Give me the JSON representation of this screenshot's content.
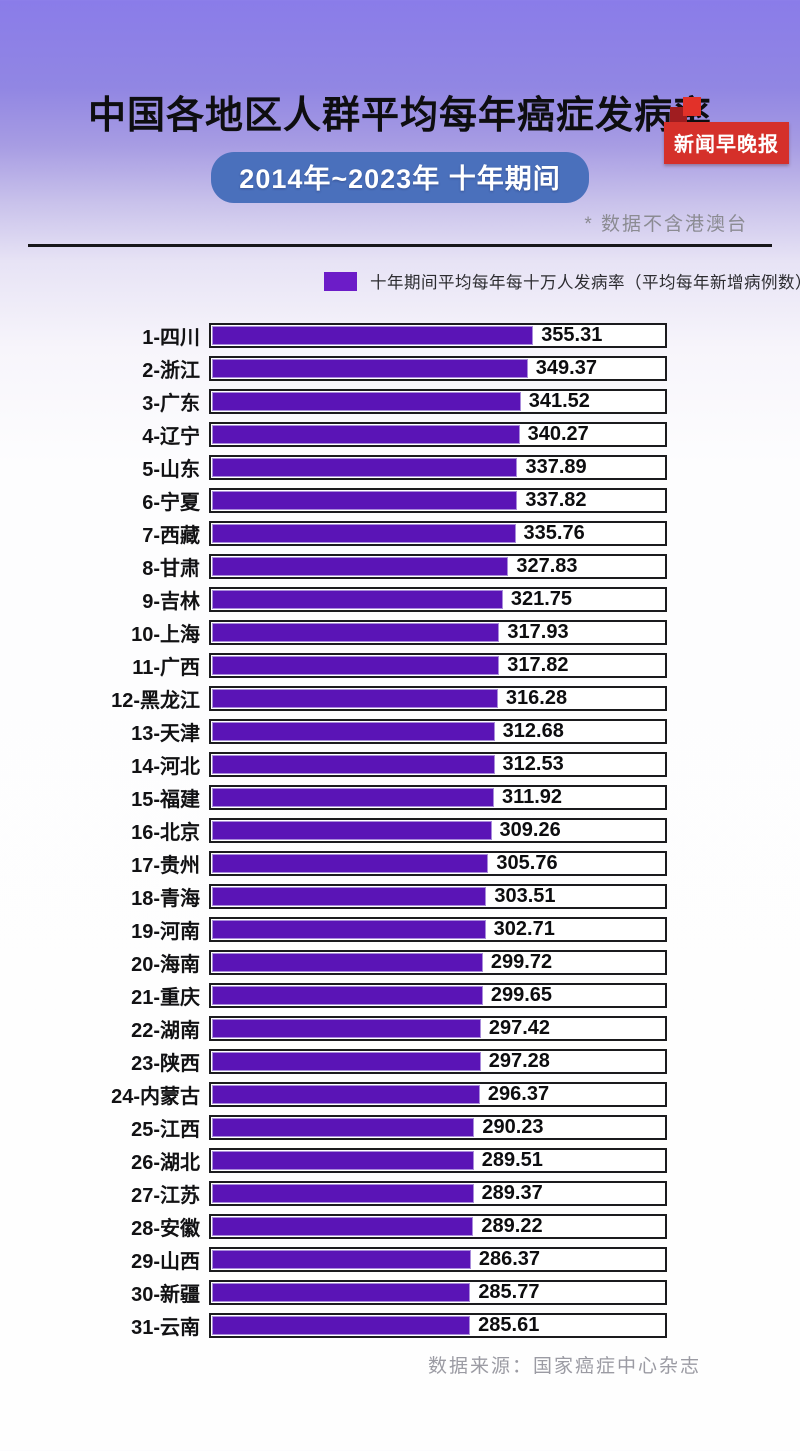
{
  "header": {
    "badge": "新闻早晚报",
    "title": "中国各地区人群平均每年癌症发病率",
    "period": "2014年~2023年 十年期间",
    "note": "* 数据不含港澳台"
  },
  "legend": {
    "label": "十年期间平均每年每十万人发病率（平均每年新增病例数）",
    "swatch_color": "#6C1CC8"
  },
  "footer": {
    "source": "数据来源：国家癌症中心杂志"
  },
  "colors": {
    "bar_fill": "#5A14B6",
    "badge_red": "#D5302A",
    "pill_blue": "#4A70BC",
    "track_border": "#1B1B1E",
    "background_top": "#8A7CE9"
  },
  "chart_data": {
    "type": "bar",
    "orientation": "horizontal",
    "title": "中国各地区人群平均每年癌症发病率",
    "subtitle": "2014年~2023年 十年期间",
    "legend": "十年期间平均每年每十万人发病率（平均每年新增病例数）",
    "xlim": [
      0,
      500
    ],
    "grid": false,
    "categories": [
      "1-四川",
      "2-浙江",
      "3-广东",
      "4-辽宁",
      "5-山东",
      "6-宁夏",
      "7-西藏",
      "8-甘肃",
      "9-吉林",
      "10-上海",
      "11-广西",
      "12-黑龙江",
      "13-天津",
      "14-河北",
      "15-福建",
      "16-北京",
      "17-贵州",
      "18-青海",
      "19-河南",
      "20-海南",
      "21-重庆",
      "22-湖南",
      "23-陕西",
      "24-内蒙古",
      "25-江西",
      "26-湖北",
      "27-江苏",
      "28-安徽",
      "29-山西",
      "30-新疆",
      "31-云南"
    ],
    "values": [
      355.31,
      349.37,
      341.52,
      340.27,
      337.89,
      337.82,
      335.76,
      327.83,
      321.75,
      317.93,
      317.82,
      316.28,
      312.68,
      312.53,
      311.92,
      309.26,
      305.76,
      303.51,
      302.71,
      299.72,
      299.65,
      297.42,
      297.28,
      296.37,
      290.23,
      289.51,
      289.37,
      289.22,
      286.37,
      285.77,
      285.61
    ],
    "source": "数据来源：国家癌症中心杂志"
  }
}
